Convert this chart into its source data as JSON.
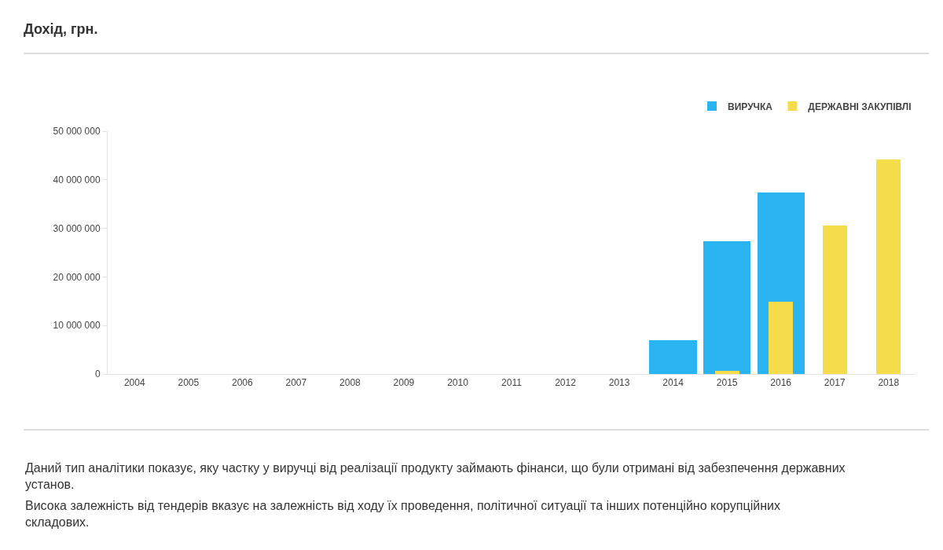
{
  "chart_data": {
    "type": "bar",
    "title": "Дохід, грн.",
    "categories": [
      "2004",
      "2005",
      "2006",
      "2007",
      "2008",
      "2009",
      "2010",
      "2011",
      "2012",
      "2013",
      "2014",
      "2015",
      "2016",
      "2017",
      "2018"
    ],
    "series": [
      {
        "name": "ВИРУЧКА",
        "color": "#2ab4f2",
        "values": [
          null,
          null,
          null,
          null,
          null,
          null,
          null,
          null,
          null,
          null,
          7000000,
          27400000,
          37400000,
          null,
          null
        ]
      },
      {
        "name": "ДЕРЖАВНІ ЗАКУПІВЛІ",
        "color": "#f4dc4b",
        "values": [
          null,
          null,
          null,
          null,
          null,
          null,
          null,
          null,
          null,
          null,
          null,
          600000,
          14900000,
          30600000,
          44200000
        ]
      }
    ],
    "ylim": [
      0,
      50000000
    ],
    "yticks": [
      0,
      {
        "value": 10000000,
        "label": "10 000 000"
      },
      {
        "value": 20000000,
        "label": "20 000 000"
      },
      {
        "value": 30000000,
        "label": "30 000 000"
      },
      {
        "value": 40000000,
        "label": "40 000 000"
      },
      {
        "value": 50000000,
        "label": "50 000 000"
      }
    ],
    "grid": false,
    "legend": "top right",
    "annotations": [
      "Даний тип аналітики показує, яку частку у виручці від реалізації продукту займають фінанси, що були отримані від забезпечення державних установ.",
      "Висока залежність від тендерів вказує на залежність від ходу їх проведення, політичної ситуації та інших потенційно корупційних складових."
    ]
  }
}
